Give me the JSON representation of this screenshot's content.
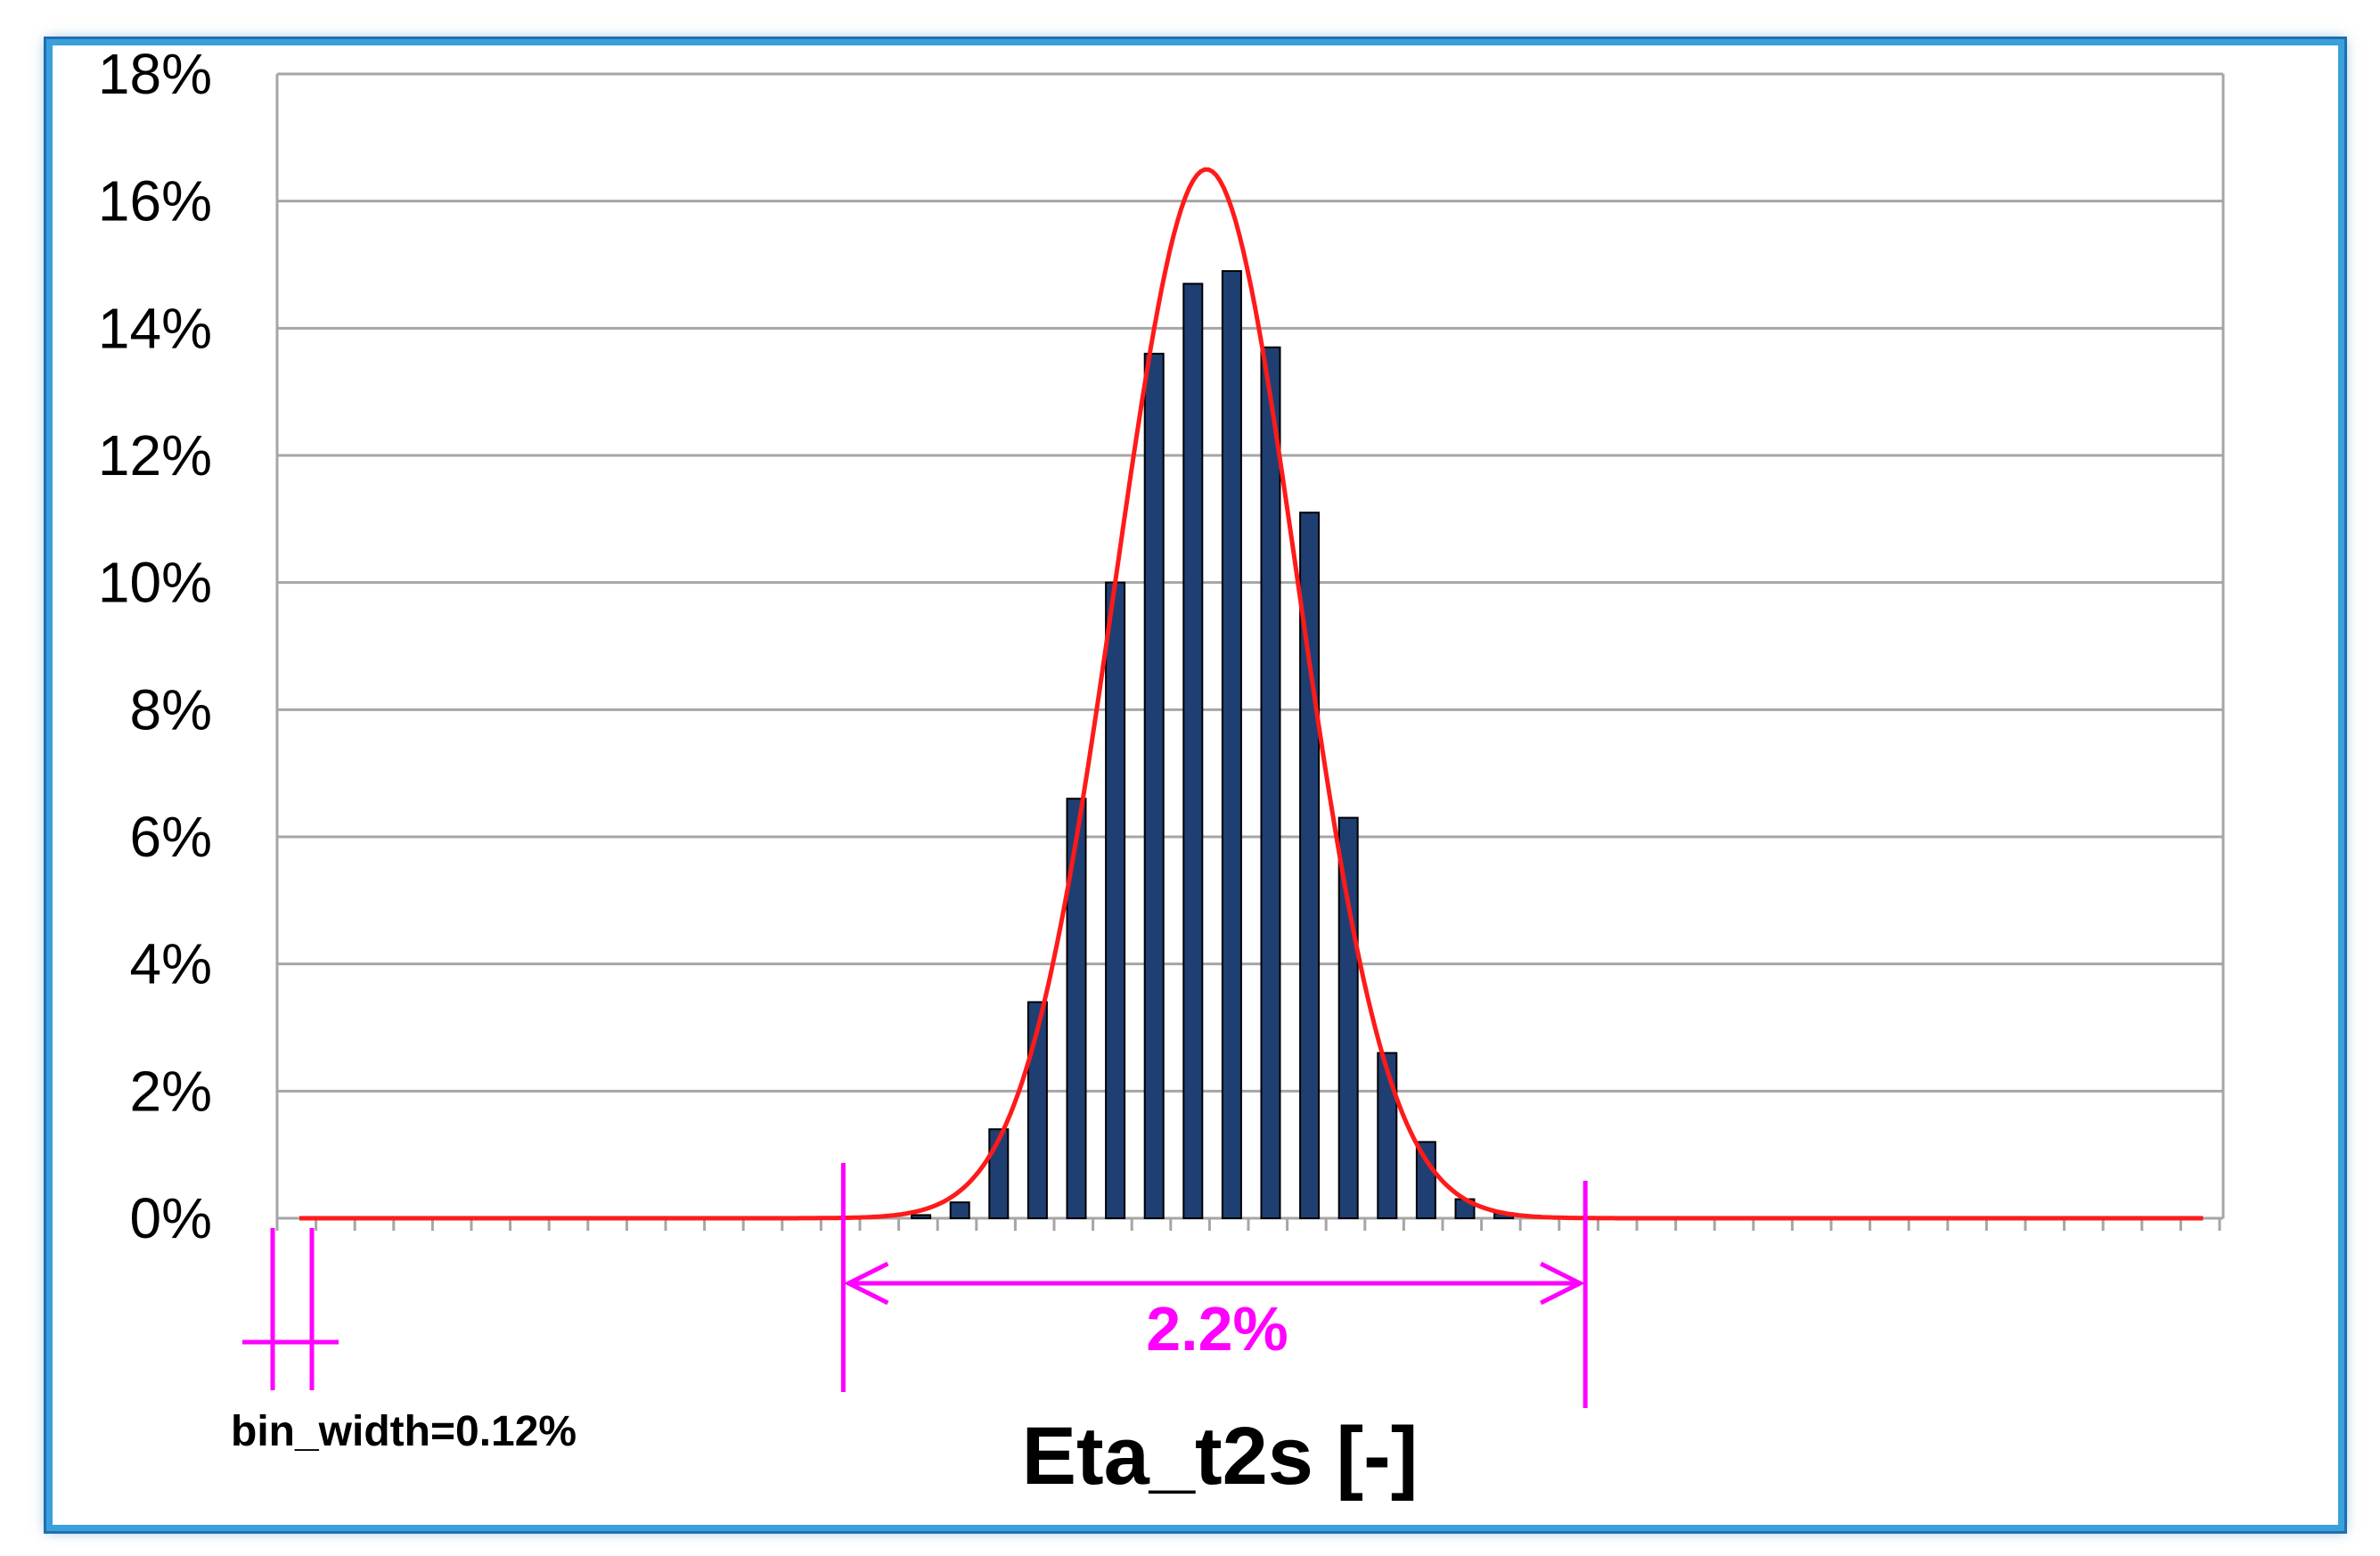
{
  "chart_data": {
    "type": "bar",
    "xlabel": "Eta_t2s [-]",
    "ylabel": "",
    "title": "",
    "ylim": [
      0,
      18
    ],
    "yticks": [
      "0%",
      "2%",
      "4%",
      "6%",
      "8%",
      "10%",
      "12%",
      "14%",
      "16%",
      "18%"
    ],
    "ytick_values": [
      0,
      2,
      4,
      6,
      8,
      10,
      12,
      14,
      16,
      18
    ],
    "grid": true,
    "bin_count": 50,
    "bar_color": "#1f3f73",
    "bar_edge_color": "#000000",
    "fit_color": "#ff1a1a",
    "annotation_color": "#ff00ff",
    "bars": [
      {
        "bin": 16,
        "value": 0.05
      },
      {
        "bin": 17,
        "value": 0.25
      },
      {
        "bin": 18,
        "value": 1.4
      },
      {
        "bin": 19,
        "value": 3.4
      },
      {
        "bin": 20,
        "value": 6.6
      },
      {
        "bin": 21,
        "value": 10.0
      },
      {
        "bin": 22,
        "value": 13.6
      },
      {
        "bin": 23,
        "value": 14.7
      },
      {
        "bin": 24,
        "value": 14.9
      },
      {
        "bin": 25,
        "value": 13.7
      },
      {
        "bin": 26,
        "value": 11.1
      },
      {
        "bin": 27,
        "value": 6.3
      },
      {
        "bin": 28,
        "value": 2.6
      },
      {
        "bin": 29,
        "value": 1.2
      },
      {
        "bin": 30,
        "value": 0.3
      },
      {
        "bin": 31,
        "value": 0.08
      }
    ],
    "fit": {
      "type": "normal",
      "peak": 16.5,
      "peak_bin": 23.35,
      "sigma_bins": 2.35,
      "bin_range": [
        0,
        49
      ]
    },
    "annotations": {
      "width_label": "2.2%",
      "width_start_bin": 14.0,
      "width_end_bin": 33.1,
      "bin_width_label": "bin_width=0.12%"
    }
  }
}
